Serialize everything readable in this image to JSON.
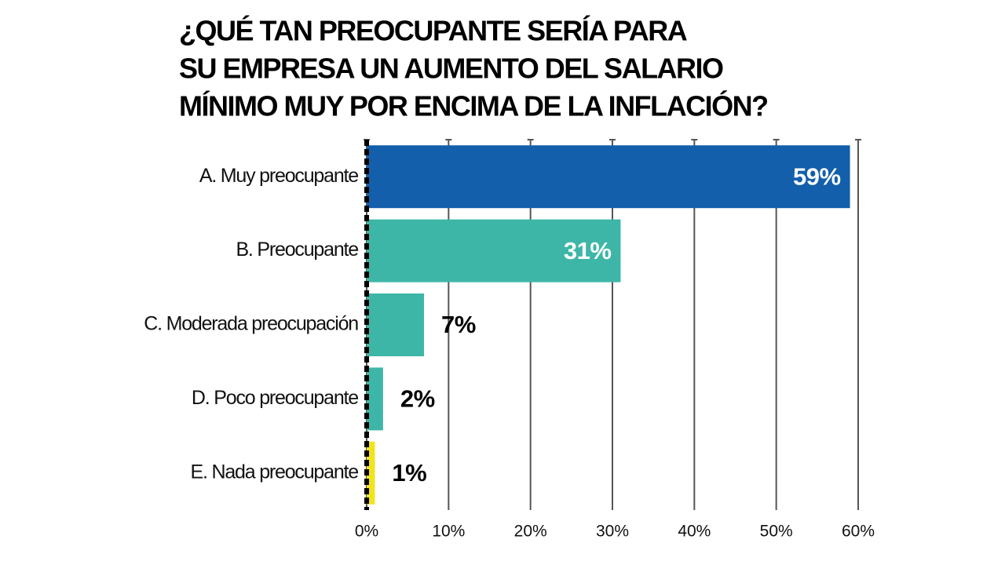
{
  "chart_data": {
    "type": "hbar",
    "title": [
      "¿QUÉ TAN PREOCUPANTE SERÍA PARA",
      "SU EMPRESA UN AUMENTO DEL SALARIO",
      "MÍNIMO MUY POR ENCIMA DE LA INFLACIÓN?"
    ],
    "categories": [
      "A. Muy preocupante",
      "B. Preocupante",
      "C. Moderada preocupación",
      "D. Poco preocupante",
      "E. Nada preocupante"
    ],
    "values": [
      59,
      31,
      7,
      2,
      1
    ],
    "value_labels": [
      "59%",
      "31%",
      "7%",
      "2%",
      "1%"
    ],
    "colors": [
      "#135fab",
      "#3db6a7",
      "#3db6a7",
      "#3db6a7",
      "#f3e31c"
    ],
    "xlim": [
      0,
      60
    ],
    "xticks": [
      {
        "value": 0,
        "label": "0%"
      },
      {
        "value": 10,
        "label": "10%"
      },
      {
        "value": 20,
        "label": "20%"
      },
      {
        "value": 30,
        "label": "30%"
      },
      {
        "value": 40,
        "label": "40%"
      },
      {
        "value": 50,
        "label": "50%"
      },
      {
        "value": 60,
        "label": "60%"
      }
    ],
    "grid": true
  }
}
